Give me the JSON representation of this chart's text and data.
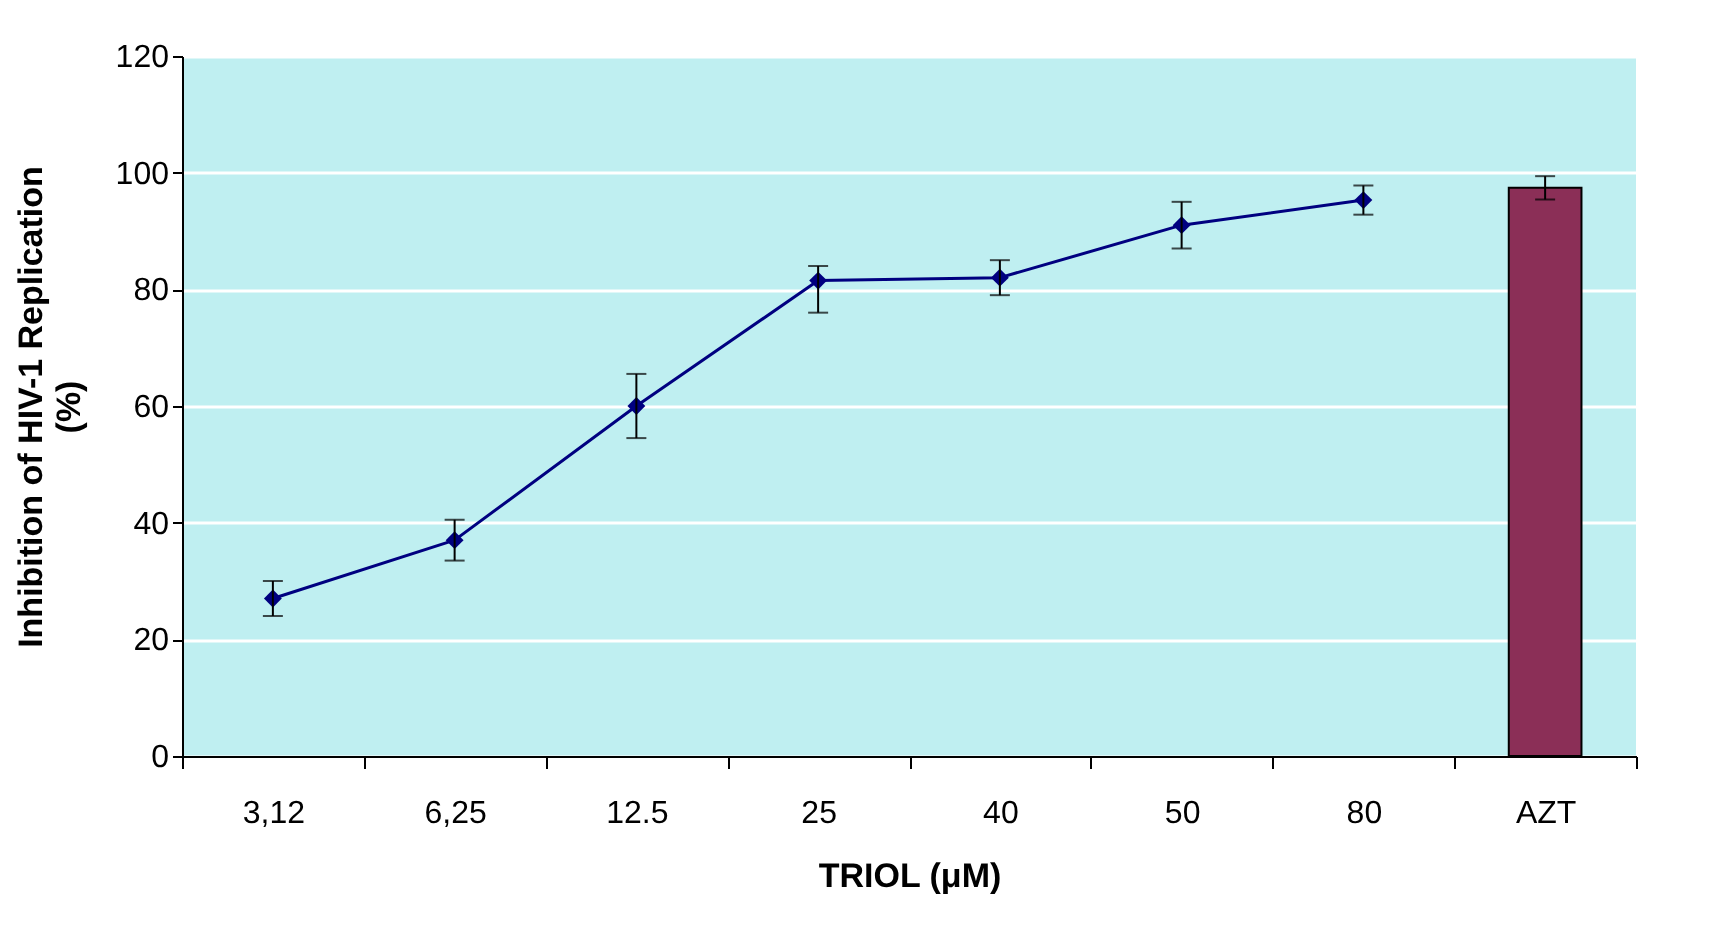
{
  "chart_data": {
    "type": "line",
    "xlabel": "TRIOL (μM)",
    "ylabel": "Inhibition of HIV-1 Replication (%)",
    "categories": [
      "3,12",
      "6,25",
      "12.5",
      "25",
      "40",
      "50",
      "80",
      "AZT"
    ],
    "series": [
      {
        "color": "#000080",
        "values": [
          27,
          37,
          60,
          81.5,
          82,
          91,
          95.3,
          null
        ],
        "errors": [
          3,
          3.5,
          5.5,
          [
            76,
            84
          ],
          3,
          4,
          2.5,
          null
        ]
      },
      {
        "type": "bar",
        "color": "#8b2f57",
        "values": [
          null,
          null,
          null,
          null,
          null,
          null,
          null,
          97.4
        ],
        "errors": [
          null,
          null,
          null,
          null,
          null,
          null,
          null,
          2
        ]
      }
    ],
    "ylim": [
      0,
      120
    ],
    "yticks": [
      0,
      20,
      40,
      60,
      80,
      100,
      120
    ],
    "grid": "y",
    "marker": "diamond"
  }
}
